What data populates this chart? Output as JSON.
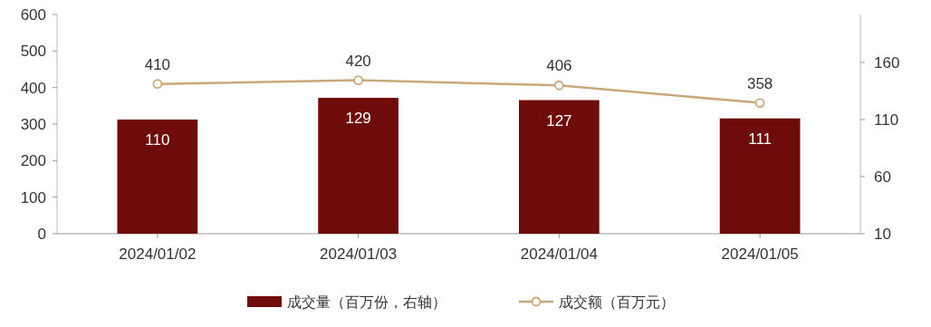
{
  "chart_data": {
    "type": "bar",
    "categories": [
      "2024/01/02",
      "2024/01/03",
      "2024/01/04",
      "2024/01/05"
    ],
    "series": [
      {
        "name": "成交量（百万份，右轴）",
        "axis": "y2",
        "color": "#6e0b0b",
        "values": [
          110,
          129,
          127,
          111
        ]
      },
      {
        "name": "成交额（百万元）",
        "type": "line",
        "color": "#c9a97c",
        "values": [
          410,
          420,
          406,
          358
        ]
      }
    ],
    "ylim": [
      0,
      600
    ],
    "yticks": [
      0,
      100,
      200,
      300,
      400,
      500,
      600
    ],
    "y2lim": [
      10,
      202
    ],
    "y2ticks": [
      10,
      60,
      110,
      160
    ],
    "data_labels": true,
    "legend": "bottom",
    "marker": "circle",
    "grid": false
  }
}
